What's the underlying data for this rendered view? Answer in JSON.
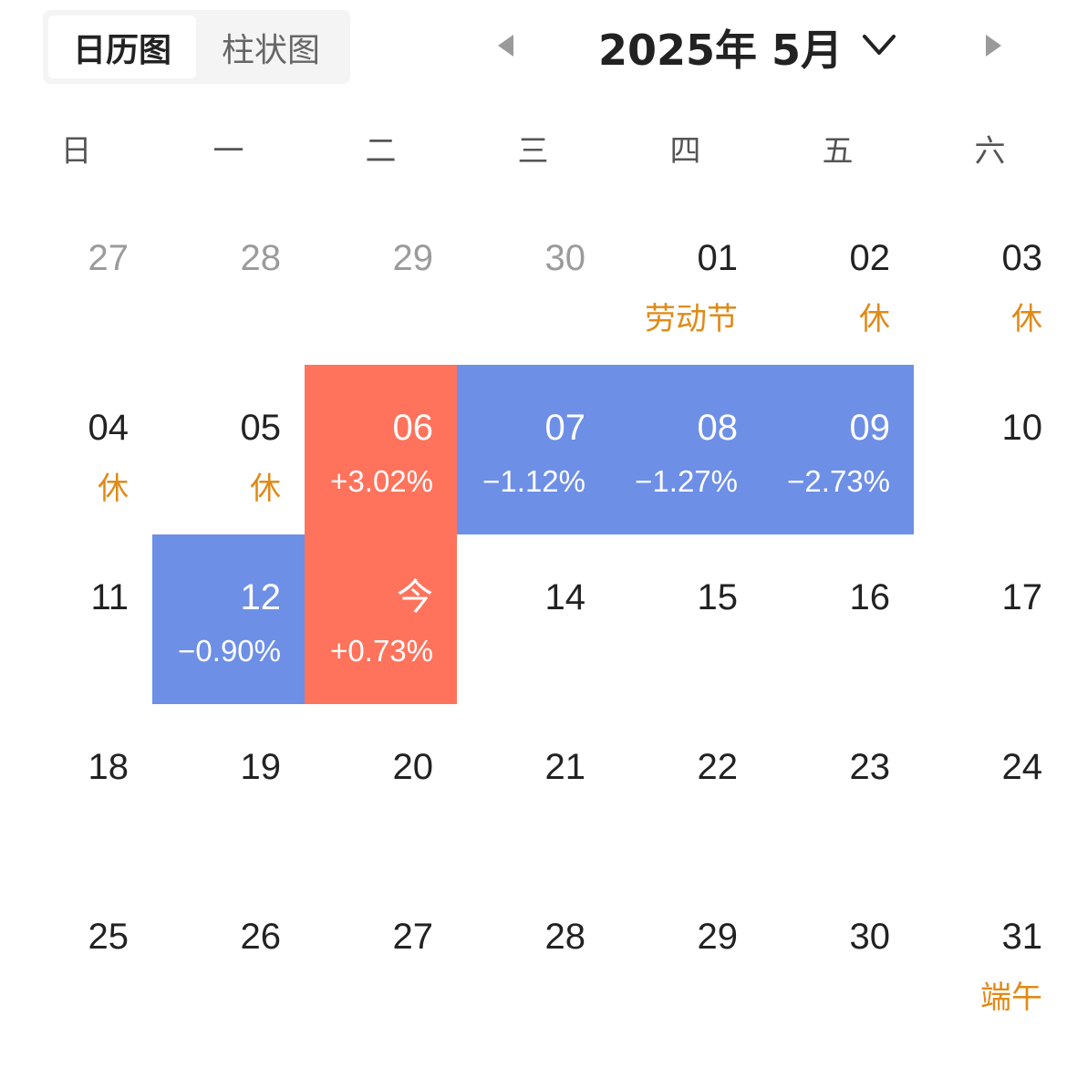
{
  "tabs": [
    {
      "label": "日历图",
      "active": true
    },
    {
      "label": "柱状图",
      "active": false
    }
  ],
  "nav": {
    "prev_icon": "triangle-left-icon",
    "next_icon": "triangle-right-icon",
    "month_label": "2025年 5月",
    "dropdown_icon": "chevron-down-icon"
  },
  "colors": {
    "up": "#ff735c",
    "down": "#6d8fe6",
    "holiday_text": "#e08a17",
    "muted_text": "#9b9b9b"
  },
  "weekdays": [
    "日",
    "一",
    "二",
    "三",
    "四",
    "五",
    "六"
  ],
  "weeks": [
    [
      {
        "day": "27",
        "muted": true
      },
      {
        "day": "28",
        "muted": true
      },
      {
        "day": "29",
        "muted": true
      },
      {
        "day": "30",
        "muted": true
      },
      {
        "day": "01",
        "note": "劳动节"
      },
      {
        "day": "02",
        "note": "休"
      },
      {
        "day": "03",
        "note": "休"
      }
    ],
    [
      {
        "day": "04",
        "note": "休"
      },
      {
        "day": "05",
        "note": "休"
      },
      {
        "day": "06",
        "change": "+3.02%",
        "trend": "up"
      },
      {
        "day": "07",
        "change": "−1.12%",
        "trend": "down"
      },
      {
        "day": "08",
        "change": "−1.27%",
        "trend": "down"
      },
      {
        "day": "09",
        "change": "−2.73%",
        "trend": "down"
      },
      {
        "day": "10"
      }
    ],
    [
      {
        "day": "11"
      },
      {
        "day": "12",
        "change": "−0.90%",
        "trend": "down"
      },
      {
        "day": "今",
        "change": "+0.73%",
        "trend": "up"
      },
      {
        "day": "14"
      },
      {
        "day": "15"
      },
      {
        "day": "16"
      },
      {
        "day": "17"
      }
    ],
    [
      {
        "day": "18"
      },
      {
        "day": "19"
      },
      {
        "day": "20"
      },
      {
        "day": "21"
      },
      {
        "day": "22"
      },
      {
        "day": "23"
      },
      {
        "day": "24"
      }
    ],
    [
      {
        "day": "25"
      },
      {
        "day": "26"
      },
      {
        "day": "27"
      },
      {
        "day": "28"
      },
      {
        "day": "29"
      },
      {
        "day": "30"
      },
      {
        "day": "31",
        "note": "端午"
      }
    ]
  ]
}
